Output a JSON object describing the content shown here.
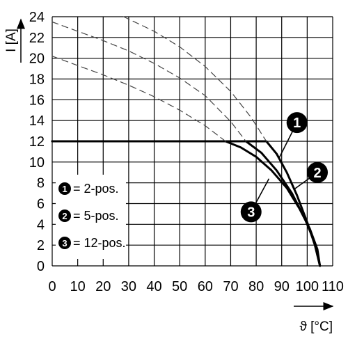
{
  "chart_data": {
    "type": "line",
    "xlabel": "ϑ [°C]",
    "ylabel": "I [A]",
    "xlim": [
      0,
      110
    ],
    "ylim": [
      0,
      24
    ],
    "x_ticks": [
      "0",
      "10",
      "20",
      "30",
      "40",
      "50",
      "60",
      "70",
      "80",
      "90",
      "100",
      "110"
    ],
    "y_ticks": [
      "0",
      "2",
      "4",
      "6",
      "8",
      "10",
      "12",
      "14",
      "16",
      "18",
      "20",
      "22",
      "24"
    ],
    "grid": true,
    "legend": {
      "placement": "lower-left",
      "entries": [
        {
          "marker": "1",
          "label": "= 2-pos."
        },
        {
          "marker": "2",
          "label": "= 5-pos."
        },
        {
          "marker": "3",
          "label": "= 12-pos."
        }
      ]
    },
    "series": [
      {
        "marker": "1",
        "style": "solid",
        "x": [
          0,
          84,
          88,
          92,
          96,
          100,
          103,
          105
        ],
        "y": [
          12,
          12,
          10.8,
          9.0,
          6.8,
          4.2,
          2.0,
          0
        ]
      },
      {
        "marker": "2",
        "style": "solid",
        "x": [
          0,
          76,
          82,
          88,
          94,
          99,
          103,
          105
        ],
        "y": [
          12,
          12,
          10.9,
          9.2,
          7.0,
          4.6,
          2.2,
          0
        ]
      },
      {
        "marker": "3",
        "style": "solid",
        "x": [
          0,
          68,
          74,
          80,
          86,
          92,
          97,
          101,
          104,
          105
        ],
        "y": [
          12,
          12,
          11.4,
          10.5,
          9.2,
          7.5,
          5.5,
          3.6,
          1.6,
          0
        ]
      },
      {
        "marker": "1",
        "style": "dashed",
        "x": [
          28,
          40,
          50,
          60,
          70,
          78,
          84
        ],
        "y": [
          24,
          22.6,
          21.1,
          19.2,
          16.8,
          14.3,
          12
        ]
      },
      {
        "marker": "2",
        "style": "dashed",
        "x": [
          0,
          10,
          20,
          30,
          40,
          50,
          60,
          70,
          76
        ],
        "y": [
          23.5,
          22.6,
          21.7,
          20.7,
          19.5,
          18.1,
          16.4,
          13.9,
          12
        ]
      },
      {
        "marker": "3",
        "style": "dashed",
        "x": [
          0,
          10,
          20,
          30,
          40,
          50,
          60,
          68
        ],
        "y": [
          20.2,
          19.3,
          18.4,
          17.4,
          16.3,
          15.0,
          13.5,
          12
        ]
      }
    ],
    "callouts": [
      {
        "marker": "1",
        "x": 96,
        "y": 13.8,
        "target_x": 89,
        "target_y": 10.4
      },
      {
        "marker": "2",
        "x": 104,
        "y": 9.0,
        "target_x": 95,
        "target_y": 7.4
      },
      {
        "marker": "3",
        "x": 78,
        "y": 5.2,
        "target_x": 85,
        "target_y": 8.4
      }
    ]
  },
  "colors": {
    "line": "#000000",
    "dash": "#444444",
    "grid": "#000000",
    "badge": "#000000",
    "background": "#ffffff"
  }
}
